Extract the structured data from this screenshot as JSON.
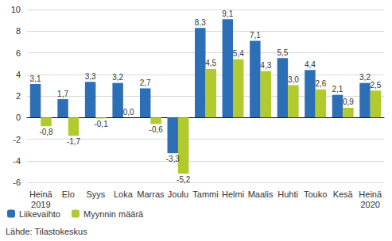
{
  "chart_data": {
    "type": "bar",
    "categories": [
      "Heinä\n2019",
      "Elo",
      "Syys",
      "Loka",
      "Marras",
      "Joulu",
      "Tammi",
      "Helmi",
      "Maalis",
      "Huhti",
      "Touko",
      "Kesä",
      "Heinä\n2020"
    ],
    "series": [
      {
        "name": "Liikevaihto",
        "color": "#2c6fb7",
        "values": [
          3.1,
          1.7,
          3.3,
          3.2,
          2.7,
          -3.3,
          8.3,
          9.1,
          7.1,
          5.5,
          4.4,
          2.1,
          3.2
        ],
        "value_labels": [
          "3,1",
          "1,7",
          "3,3",
          "3,2",
          "2,7",
          "-3,3",
          "8,3",
          "9,1",
          "7,1",
          "5,5",
          "4,4",
          "2,1",
          "3,2"
        ]
      },
      {
        "name": "Myynnin määrä",
        "color": "#b1cb2f",
        "values": [
          -0.8,
          -1.7,
          -0.1,
          0.0,
          -0.6,
          -5.2,
          4.5,
          5.4,
          4.3,
          3.0,
          2.6,
          0.9,
          2.5
        ],
        "value_labels": [
          "-0,8",
          "-1,7",
          "-0,1",
          "0,0",
          "-0,6",
          "-5,2",
          "4,5",
          "5,4",
          "4,3",
          "3,0",
          "2,6",
          "0,9",
          "2,5"
        ]
      }
    ],
    "ylim": [
      -6,
      10
    ],
    "yticks": [
      -6,
      -4,
      -2,
      0,
      2,
      4,
      6,
      8,
      10
    ],
    "grid": true,
    "legend": "bottom-left",
    "data_labels": true,
    "source": "Lähde: Tilastokeskus"
  }
}
